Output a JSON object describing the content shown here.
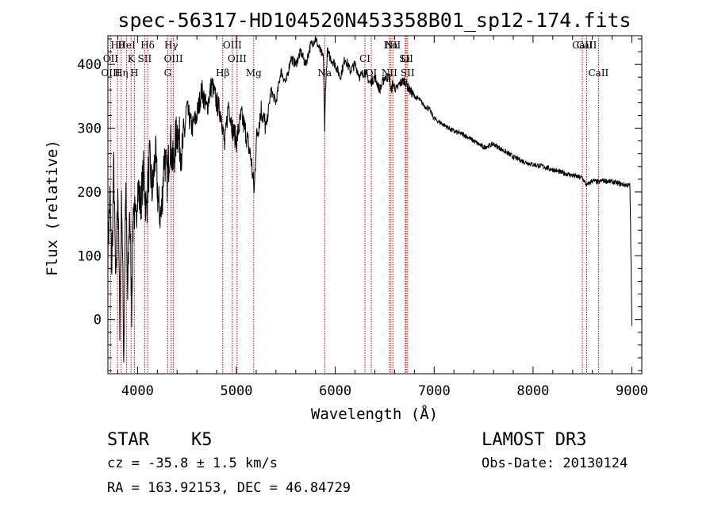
{
  "chart_data": {
    "type": "line",
    "title": "spec-56317-HD104520N453358B01_sp12-174.fits",
    "xlabel": "Wavelength (Å)",
    "ylabel": "Flux (relative)",
    "xlim": [
      3700,
      9100
    ],
    "ylim": [
      -85,
      445
    ],
    "x_ticks": [
      4000,
      5000,
      6000,
      7000,
      8000,
      9000
    ],
    "y_ticks": [
      0,
      100,
      200,
      300,
      400
    ],
    "grid": false,
    "series": [
      {
        "name": "flux",
        "x": [
          3700,
          3720,
          3740,
          3760,
          3780,
          3800,
          3820,
          3840,
          3860,
          3880,
          3900,
          3920,
          3940,
          3960,
          3980,
          4000,
          4030,
          4060,
          4090,
          4120,
          4150,
          4180,
          4210,
          4240,
          4270,
          4300,
          4330,
          4360,
          4400,
          4450,
          4500,
          4550,
          4600,
          4650,
          4700,
          4750,
          4800,
          4850,
          4880,
          4920,
          4960,
          5000,
          5050,
          5100,
          5150,
          5180,
          5200,
          5250,
          5300,
          5350,
          5400,
          5450,
          5500,
          5550,
          5600,
          5650,
          5700,
          5750,
          5800,
          5850,
          5880,
          5893,
          5900,
          5920,
          5950,
          6000,
          6050,
          6100,
          6150,
          6200,
          6250,
          6300,
          6350,
          6400,
          6450,
          6500,
          6550,
          6563,
          6580,
          6620,
          6650,
          6700,
          6750,
          6800,
          6850,
          6900,
          6950,
          7000,
          7100,
          7200,
          7300,
          7400,
          7500,
          7600,
          7700,
          7800,
          7900,
          8000,
          8100,
          8200,
          8300,
          8400,
          8500,
          8542,
          8600,
          8662,
          8700,
          8800,
          8900,
          8980,
          9000
        ],
        "y": [
          110,
          190,
          80,
          240,
          40,
          220,
          0,
          200,
          -60,
          210,
          30,
          180,
          20,
          190,
          140,
          210,
          180,
          230,
          170,
          250,
          200,
          260,
          180,
          160,
          260,
          220,
          280,
          240,
          300,
          260,
          330,
          300,
          320,
          360,
          330,
          370,
          340,
          320,
          270,
          340,
          300,
          280,
          320,
          290,
          250,
          200,
          280,
          330,
          300,
          360,
          340,
          390,
          370,
          410,
          400,
          420,
          400,
          430,
          440,
          420,
          410,
          290,
          360,
          420,
          410,
          400,
          380,
          410,
          390,
          400,
          380,
          390,
          370,
          380,
          360,
          380,
          380,
          355,
          370,
          360,
          370,
          375,
          360,
          350,
          345,
          335,
          330,
          315,
          305,
          295,
          290,
          280,
          270,
          275,
          265,
          255,
          248,
          243,
          240,
          235,
          230,
          226,
          222,
          210,
          218,
          215,
          218,
          216,
          212,
          210,
          -10
        ]
      }
    ],
    "emission_lines": [
      {
        "label": "Hθ",
        "x": 3798
      },
      {
        "label": "K",
        "x": 3934
      },
      {
        "label": "Hδ",
        "x": 4102
      },
      {
        "label": "OIII",
        "x": 4363
      },
      {
        "label": "OIII",
        "x": 4959
      },
      {
        "label": "CI",
        "x": 6300
      },
      {
        "label": "Hα",
        "x": 6563
      },
      {
        "label": "SII",
        "x": 6717
      },
      {
        "label": "CaII",
        "x": 8542
      },
      {
        "label": "OII",
        "x": 3727
      },
      {
        "label": "HeI",
        "x": 3889
      },
      {
        "label": "SII",
        "x": 4072
      },
      {
        "label": "Hγ",
        "x": 4340
      },
      {
        "label": "OIII",
        "x": 5007
      },
      {
        "label": "NII",
        "x": 6583
      },
      {
        "label": "Li",
        "x": 6708
      },
      {
        "label": "CaII",
        "x": 8498
      }
    ],
    "absorption_lines": [
      {
        "label": "OIII",
        "x": 3727
      },
      {
        "label": "Hη",
        "x": 3835
      },
      {
        "label": "H",
        "x": 3968
      },
      {
        "label": "G",
        "x": 4305
      },
      {
        "label": "Hβ",
        "x": 4861
      },
      {
        "label": "Mg",
        "x": 5175
      },
      {
        "label": "Na",
        "x": 5893
      },
      {
        "label": "OI",
        "x": 6364
      },
      {
        "label": "NII",
        "x": 6548
      },
      {
        "label": "SII",
        "x": 6731
      },
      {
        "label": "CaII",
        "x": 8662
      }
    ],
    "info": {
      "class": "STAR",
      "subclass": "K5",
      "cz": "cz = -35.8 ± 1.5 km/s",
      "survey": "LAMOST DR3",
      "obs_date": "Obs-Date: 20130124",
      "coords": "RA = 163.92153, DEC =  46.84729"
    },
    "colors": {
      "axes": "#000000",
      "spectrum": "#000000",
      "lines": "#cc0000"
    }
  }
}
